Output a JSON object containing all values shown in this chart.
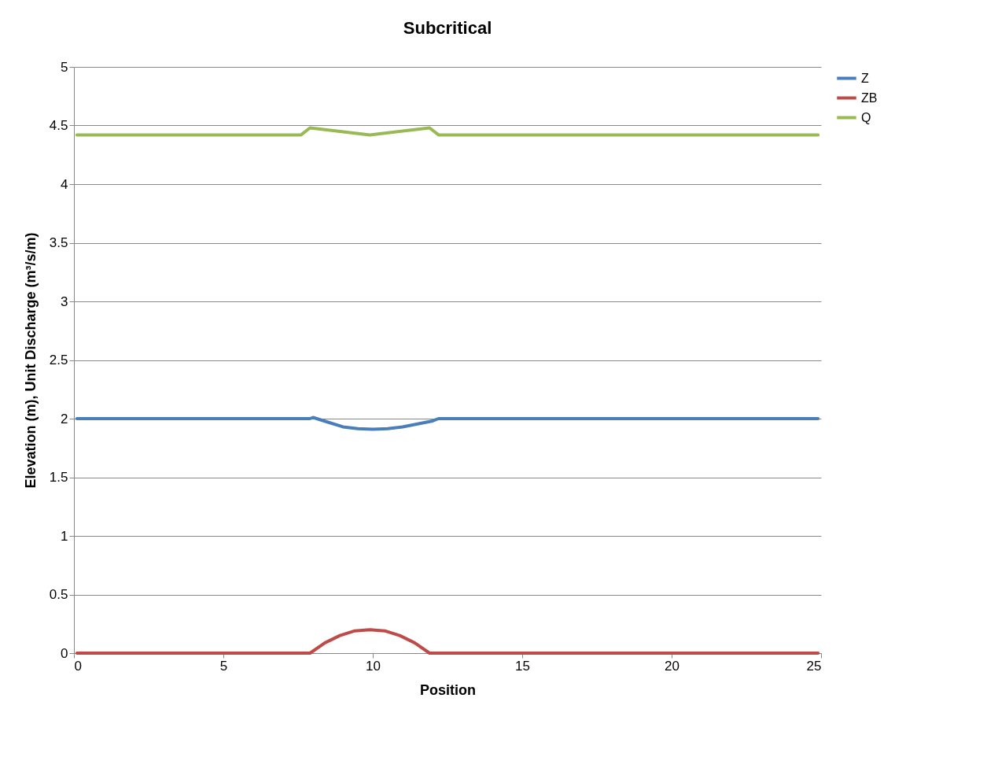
{
  "chart_data": {
    "type": "line",
    "title": "Subcritical",
    "xlabel": "Position",
    "ylabel": "Elevation (m), Unit Discharge (m³/s/m)",
    "xlim": [
      0,
      25
    ],
    "xticks": [
      0,
      5,
      10,
      15,
      20,
      25
    ],
    "ylim": [
      0,
      5
    ],
    "yticks": [
      0,
      0.5,
      1,
      1.5,
      2,
      2.5,
      3,
      3.5,
      4,
      4.5,
      5
    ],
    "grid": "y",
    "legend": "right",
    "marker": "none",
    "line_style": "solid",
    "series": [
      {
        "name": "Z",
        "color": "#4a7ebb",
        "x": [
          0.1,
          7.9,
          8.0,
          8.5,
          9.0,
          9.5,
          10.0,
          10.5,
          11.0,
          11.5,
          12.0,
          12.2,
          24.9
        ],
        "values": [
          2.0,
          2.0,
          2.01,
          1.97,
          1.93,
          1.915,
          1.91,
          1.915,
          1.93,
          1.955,
          1.98,
          2.0,
          2.0
        ]
      },
      {
        "name": "ZB",
        "color": "#be4b48",
        "x": [
          0.1,
          7.9,
          8.4,
          8.9,
          9.4,
          9.9,
          10.4,
          10.9,
          11.4,
          11.9,
          24.9
        ],
        "values": [
          0,
          0,
          0.088,
          0.15,
          0.19,
          0.2,
          0.19,
          0.15,
          0.088,
          0,
          0
        ]
      },
      {
        "name": "Q",
        "color": "#98b954",
        "x": [
          0.1,
          7.6,
          7.9,
          9.9,
          11.9,
          12.2,
          24.9
        ],
        "values": [
          4.42,
          4.42,
          4.48,
          4.42,
          4.48,
          4.42,
          4.42
        ]
      }
    ]
  }
}
